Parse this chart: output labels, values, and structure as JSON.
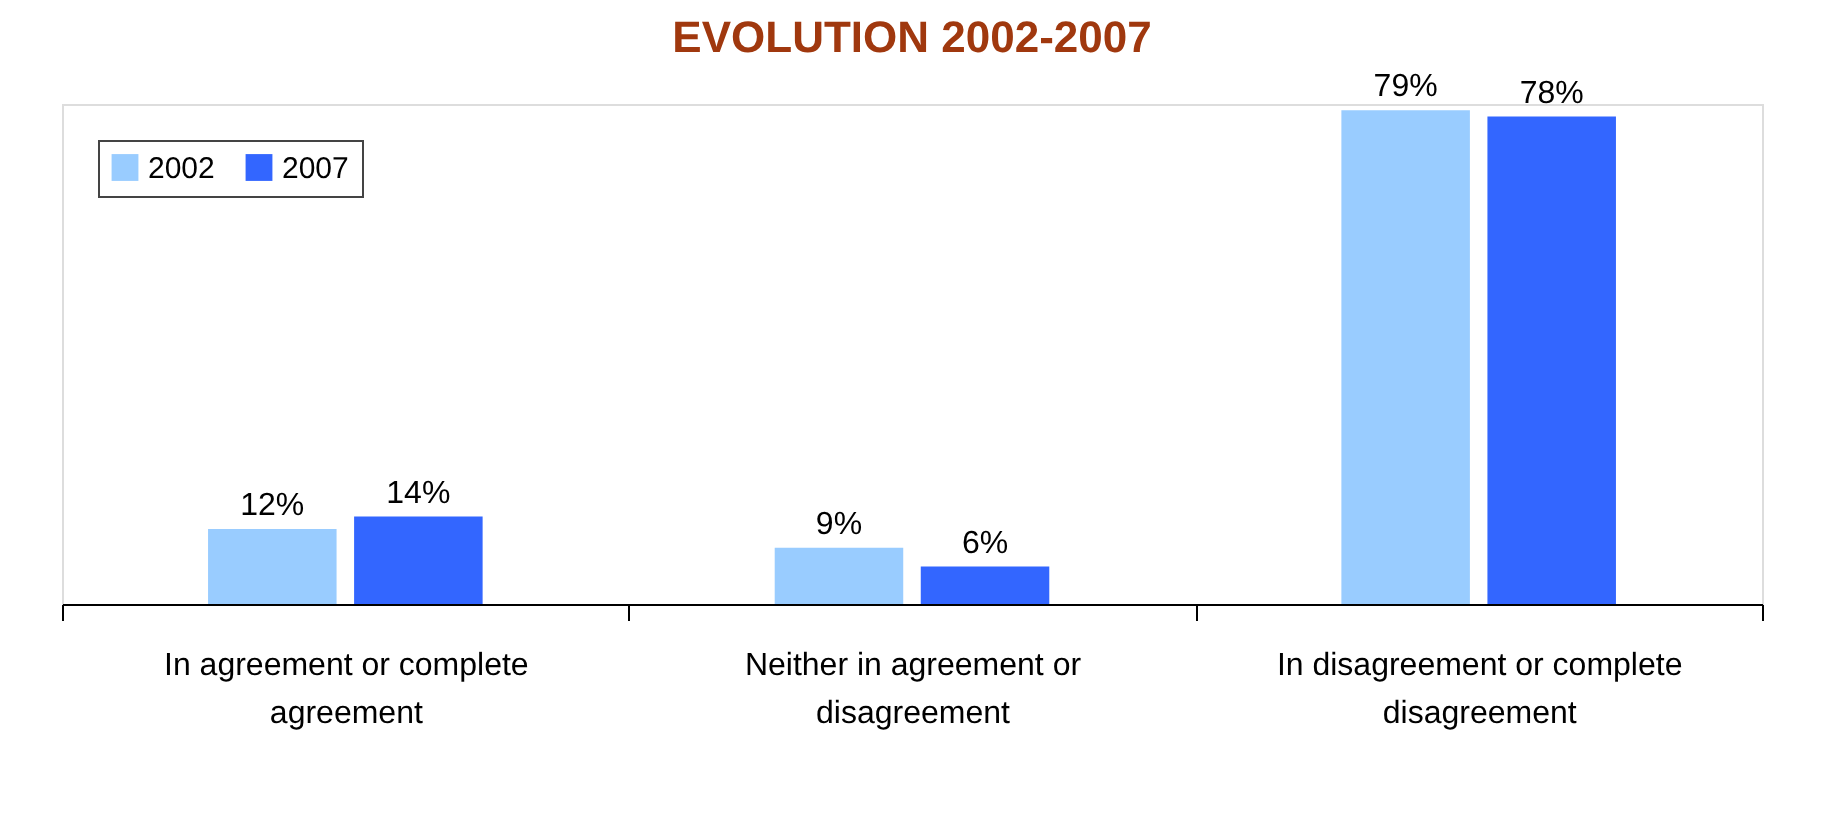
{
  "chart_data": {
    "type": "bar",
    "title": "EVOLUTION 2002-2007",
    "categories": [
      "In agreement or complete agreement",
      "Neither in agreement or disagreement",
      "In disagreement or complete disagreement"
    ],
    "series": [
      {
        "name": "2002",
        "color": "#99ccff",
        "values": [
          12,
          9,
          79
        ],
        "value_labels": [
          "12%",
          "9%",
          "79%"
        ]
      },
      {
        "name": "2007",
        "color": "#3366ff",
        "values": [
          14,
          6,
          78
        ],
        "value_labels": [
          "14%",
          "6%",
          "78%"
        ]
      }
    ],
    "legend": "top left",
    "grid": false,
    "tick_labels": "x"
  }
}
